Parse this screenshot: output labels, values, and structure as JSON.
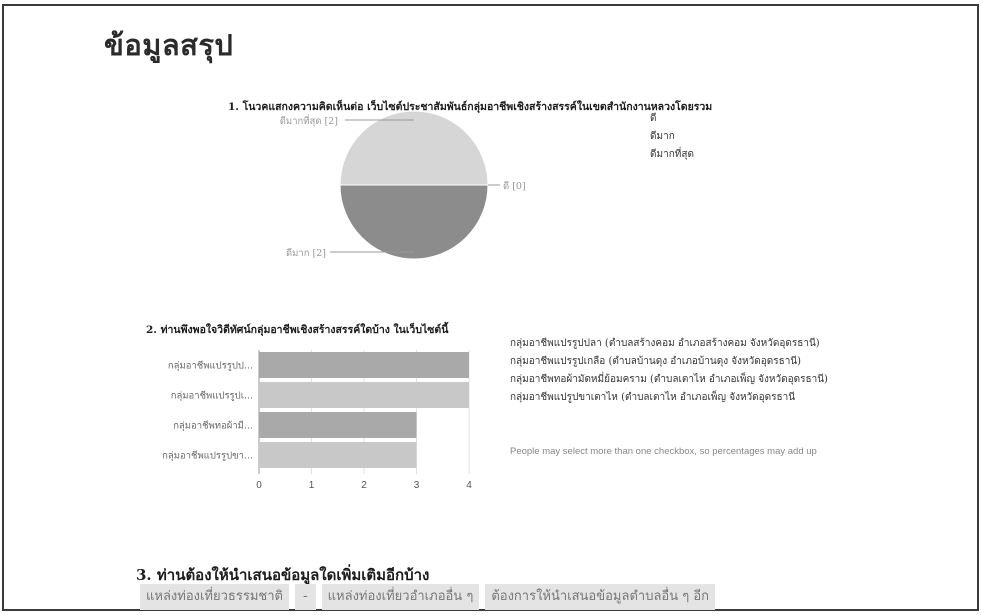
{
  "page_title": "ข้อมูลสรุป",
  "colors": {
    "pie_light": "#d6d6d6",
    "pie_dark": "#8c8c8c",
    "bar_dark": "#a9a9a9",
    "bar_light": "#c8c8c8",
    "axis": "#999999"
  },
  "chart_data": [
    {
      "type": "pie",
      "title": "1. โนวคแสกงความคิดเห็นต่อ เว็บไซต์ประชาสัมพันธ์กลุ่มอาชีพเชิงสร้างสรรค์ในเขตสำนักงานหลวงโดยรวม",
      "slices": [
        {
          "label": "ดีมากที่สุด [2]",
          "value": 2
        },
        {
          "label": "ดี [0]",
          "value": 0
        },
        {
          "label": "ดีมาก [2]",
          "value": 2
        }
      ],
      "legend": [
        "ดี",
        "ดีมาก",
        "ดีมากที่สุด"
      ],
      "legend_position": "right"
    },
    {
      "type": "bar",
      "orientation": "horizontal",
      "title": "2. ท่านพึงพอใจวิดีทัศน์กลุ่มอาชีพเชิงสร้างสรรค์ใดบ้าง ในเว็บไซต์นี้",
      "categories": [
        "กลุ่มอาชีพแปรรูปป...",
        "กลุ่มอาชีพแปรรูปเ...",
        "กลุ่มอาชีพทอผ้ามี...",
        "กลุ่มอาชีพแปรรูปขา..."
      ],
      "values": [
        4,
        4,
        3,
        3
      ],
      "xlim": [
        0,
        4
      ],
      "xticks": [
        "0",
        "1",
        "2",
        "3",
        "4"
      ],
      "legend": [
        "กลุ่มอาชีพแปรรูปปลา (ตำบลสร้างคอม อำเภอสร้างคอม จังหวัดอุดรธานี)",
        "กลุ่มอาชีพแปรรูปเกลือ (ตำบลบ้านดุง อำเภอบ้านดุง จังหวัดอุดรธานี)",
        "กลุ่มอาชีพทอผ้ามัดหมี่ย้อมคราม (ตำบลเตาไห อำเภอเพ็ญ จังหวัดอุดรธานี)",
        "กลุ่มอาชีพแปรูปขาเตาไห (ตำบลเตาไห อำเภอเพ็ญ จังหวัดอุดรธานี"
      ],
      "legend_position": "right",
      "note": "People may select more than one checkbox, so percentages may add up"
    }
  ],
  "q3": {
    "title": "3. ท่านต้องให้นำเสนอข้อมูลใดเพิ่มเติมอีกบ้าง",
    "answers": [
      "แหล่งท่องเที่ยวธรรมชาติ",
      "-",
      "แหล่งท่องเที่ยวอำเภออื่น ๆ",
      "ต้องการให้นำเสนอข้อมูลตำบลอื่น ๆ อีก"
    ]
  }
}
